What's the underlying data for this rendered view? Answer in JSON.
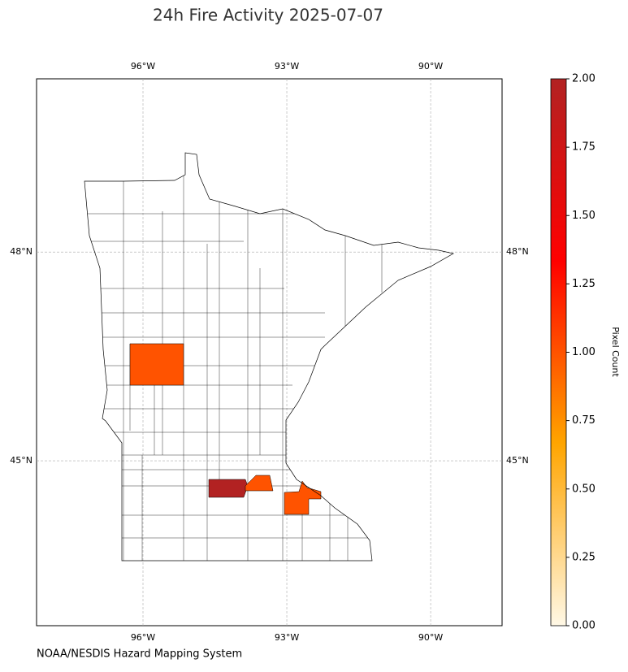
{
  "chart_data": {
    "type": "choropleth",
    "title": "24h Fire Activity 2025-07-07",
    "footer": "NOAA/NESDIS Hazard Mapping System",
    "colorbar_label": "Pixel Count",
    "values": [
      1,
      2,
      1,
      1
    ],
    "colors": [
      "#fff8e6",
      "#ffa500",
      "#ff0000",
      "#b22222"
    ],
    "clim": [
      0,
      2
    ],
    "cticks": [
      {
        "value": 0,
        "label": "0.00"
      },
      {
        "value": 0.25,
        "label": "0.25"
      },
      {
        "value": 0.5,
        "label": "0.50"
      },
      {
        "value": 0.75,
        "label": "0.75"
      },
      {
        "value": 1,
        "label": "1.00"
      },
      {
        "value": 1.25,
        "label": "1.25"
      },
      {
        "value": 1.5,
        "label": "1.50"
      },
      {
        "value": 1.75,
        "label": "1.75"
      },
      {
        "value": 2,
        "label": "2.00"
      }
    ],
    "xlim": [
      -98.22,
      -88.51
    ],
    "ylim": [
      42.63,
      50.49
    ],
    "xticks": [
      {
        "value": -96,
        "label": "96°W"
      },
      {
        "value": -93,
        "label": "93°W"
      },
      {
        "value": -90,
        "label": "90°W"
      }
    ],
    "yticks": [
      {
        "value": 48,
        "label": "48°N"
      },
      {
        "value": 45,
        "label": "45°N"
      }
    ],
    "grid": true
  }
}
